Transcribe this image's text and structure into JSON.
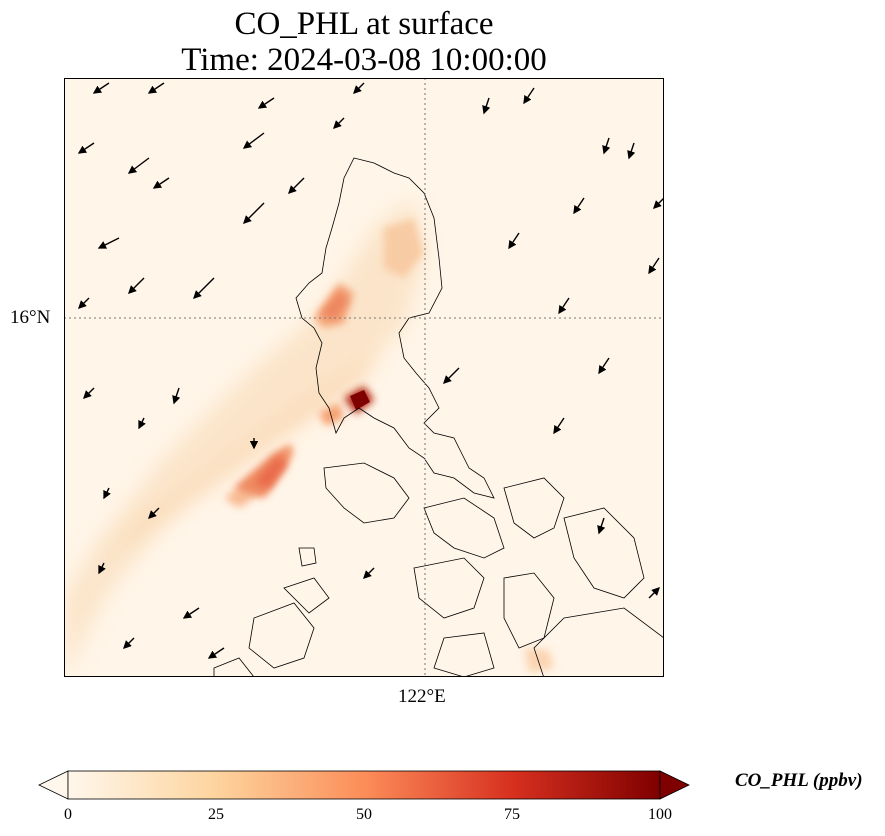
{
  "title": {
    "line1": "CO_PHL at surface",
    "line2": "Time: 2024-03-08 10:00:00"
  },
  "axes": {
    "lat_label": "16°N",
    "lon_label": "122°E"
  },
  "colorbar": {
    "label": "CO_PHL (ppbv)",
    "ticks": [
      "0",
      "25",
      "50",
      "75",
      "100"
    ],
    "range": [
      0,
      100
    ],
    "colormap": "OrRd",
    "colors": [
      "#fff7ec",
      "#fdd49e",
      "#fc8d59",
      "#d7301f",
      "#7f0000"
    ]
  },
  "map": {
    "background": "#fff5e8",
    "coastline_color": "#000000",
    "gridline_style": "dotted",
    "features": [
      "co-plume",
      "wind-vectors",
      "coastlines"
    ]
  }
}
